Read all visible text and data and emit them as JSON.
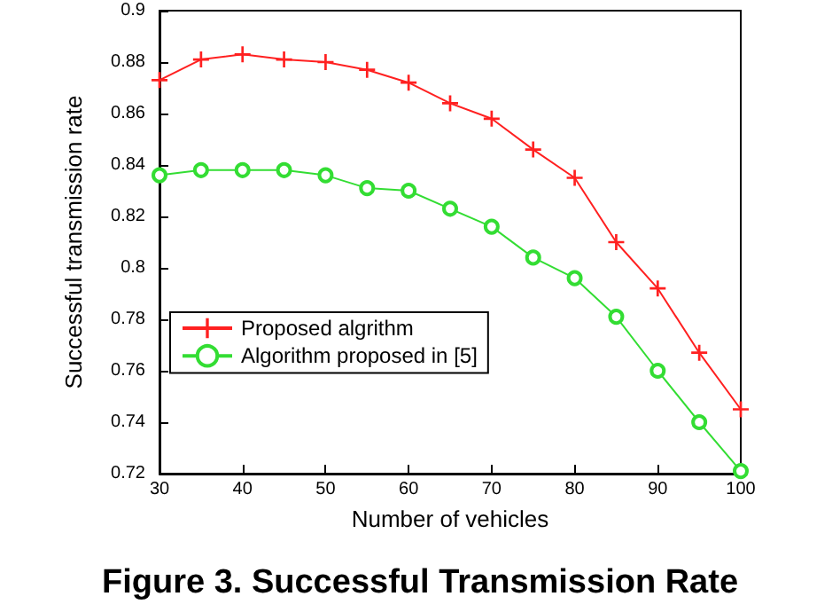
{
  "chart_data": {
    "type": "line",
    "title": "Figure 3. Successful Transmission Rate",
    "xlabel": "Number of vehicles",
    "ylabel": "Successful transmission rate",
    "x": [
      30,
      35,
      40,
      45,
      50,
      55,
      60,
      65,
      70,
      75,
      80,
      85,
      90,
      95,
      100
    ],
    "series": [
      {
        "name": "Proposed algrithm",
        "color": "#ff2020",
        "marker": "cross",
        "values": [
          0.873,
          0.881,
          0.883,
          0.881,
          0.88,
          0.877,
          0.872,
          0.864,
          0.858,
          0.846,
          0.835,
          0.81,
          0.792,
          0.767,
          0.745
        ]
      },
      {
        "name": "Algorithm proposed in [5]",
        "color": "#33dd33",
        "marker": "circle",
        "values": [
          0.836,
          0.838,
          0.838,
          0.838,
          0.836,
          0.831,
          0.83,
          0.823,
          0.816,
          0.804,
          0.796,
          0.781,
          0.76,
          0.74,
          0.721
        ]
      }
    ],
    "xlim": [
      30,
      100
    ],
    "xticks": [
      30,
      40,
      50,
      60,
      70,
      80,
      90,
      100
    ],
    "ylim": [
      0.72,
      0.9
    ],
    "yticks": [
      0.72,
      0.74,
      0.76,
      0.78,
      0.8,
      0.82,
      0.84,
      0.86,
      0.88,
      0.9
    ],
    "grid": false,
    "legend": "left",
    "line_style": "solid"
  }
}
